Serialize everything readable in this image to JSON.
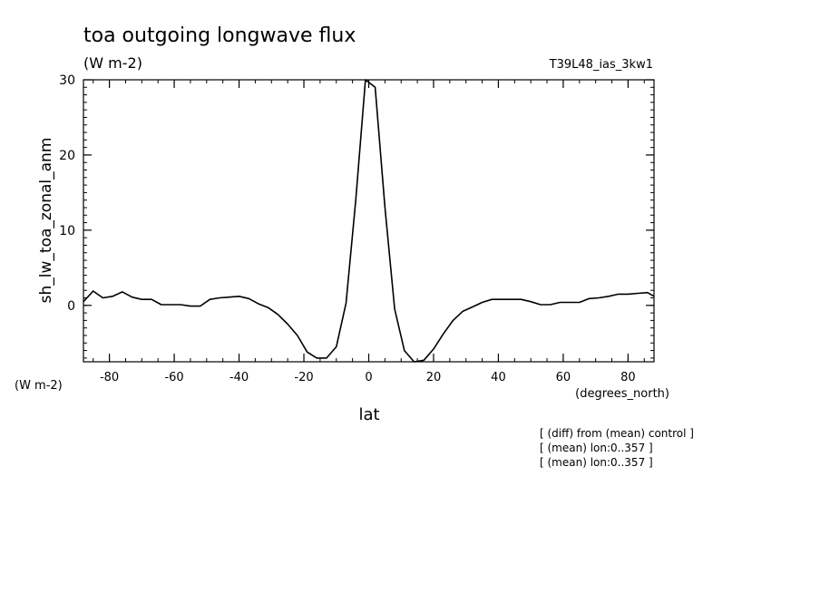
{
  "chart_data": {
    "type": "line",
    "title": "toa outgoing longwave flux",
    "subtitle": "(W m-2)",
    "run_label": "T39L48_ias_3kw1",
    "xlabel": "lat",
    "x_units": "(degrees_north)",
    "ylabel": "sh_lw_toa_zonal_anm",
    "y_units": "(W m-2)",
    "xlim": [
      -88,
      88
    ],
    "ylim": [
      -7.5,
      30
    ],
    "x_ticks": [
      -80,
      -60,
      -40,
      -20,
      0,
      20,
      40,
      60,
      80
    ],
    "x_tick_labels": [
      "-80",
      "-60",
      "-40",
      "-20",
      "0",
      "20",
      "40",
      "60",
      "80"
    ],
    "y_ticks": [
      0,
      10,
      20,
      30
    ],
    "y_tick_labels": [
      "0",
      "10",
      "20",
      "30"
    ],
    "grid": false,
    "notes": [
      "[ (diff) from (mean) control ]",
      "[ (mean) lon:0..357 ]",
      "[ (mean) lon:0..357 ]"
    ],
    "series": [
      {
        "x": [
          -88,
          -85,
          -82,
          -79,
          -76,
          -73,
          -70,
          -67,
          -64,
          -61,
          -58,
          -55,
          -52,
          -49,
          -46,
          -43,
          -40,
          -37,
          -34,
          -31,
          -28,
          -25,
          -22,
          -19,
          -16,
          -13,
          -10,
          -7,
          -4,
          -1,
          2,
          5,
          8,
          11,
          14,
          17,
          20,
          23,
          26,
          29,
          32,
          35,
          38,
          41,
          44,
          47,
          50,
          53,
          56,
          59,
          62,
          65,
          68,
          71,
          74,
          77,
          80,
          83,
          86,
          88
        ],
        "y": [
          0.5,
          1.9,
          1.0,
          1.2,
          1.8,
          1.1,
          0.8,
          0.8,
          0.1,
          0.1,
          0.1,
          -0.1,
          -0.1,
          0.8,
          1.0,
          1.1,
          1.2,
          0.9,
          0.2,
          -0.3,
          -1.2,
          -2.5,
          -4.0,
          -6.2,
          -7.0,
          -7.0,
          -5.5,
          0.3,
          14.0,
          30.0,
          29.0,
          13.0,
          -0.5,
          -6.0,
          -7.5,
          -7.3,
          -5.8,
          -3.8,
          -2.0,
          -0.8,
          -0.2,
          0.4,
          0.8,
          0.8,
          0.8,
          0.8,
          0.5,
          0.1,
          0.1,
          0.4,
          0.4,
          0.4,
          0.9,
          1.0,
          1.2,
          1.5,
          1.5,
          1.6,
          1.7,
          1.2
        ]
      }
    ]
  }
}
